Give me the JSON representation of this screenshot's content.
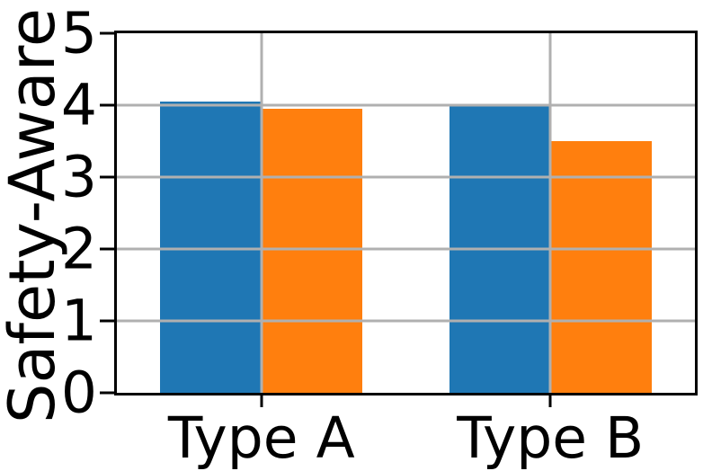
{
  "chart_data": {
    "type": "bar",
    "title": "",
    "categories": [
      "Type A",
      "Type B"
    ],
    "series": [
      {
        "name": "blue",
        "color": "#1f77b4",
        "values": [
          4.05,
          4.0
        ]
      },
      {
        "name": "orange",
        "color": "#ff7f0e",
        "values": [
          3.95,
          3.5
        ]
      }
    ],
    "xlabel": "",
    "ylabel": "Safety-Aware",
    "ylim": [
      0,
      5
    ],
    "yticks": [
      0,
      1,
      2,
      3,
      4,
      5
    ],
    "grid": true,
    "legend": "none",
    "bar_width_fraction": 0.1747,
    "group_centers_fraction": [
      0.25,
      0.75
    ]
  },
  "style": {
    "grid_color": "#b0b0b0",
    "spine_color": "#000000",
    "background": "#ffffff"
  }
}
